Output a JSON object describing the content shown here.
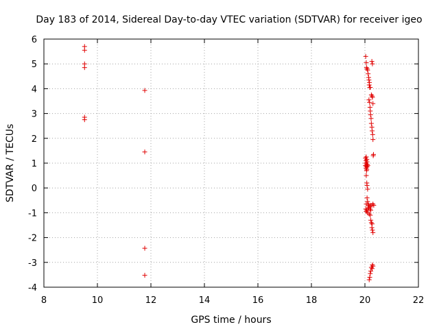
{
  "chart_data": {
    "type": "scatter",
    "title": "Day 183 of 2014, Sidereal Day-to-day VTEC variation (SDTVAR) for receiver igeo",
    "xlabel": "GPS time / hours",
    "ylabel": "SDTVAR / TECUs",
    "xlim": [
      8,
      22
    ],
    "ylim": [
      -4,
      6
    ],
    "xticks": [
      "8",
      "10",
      "12",
      "14",
      "16",
      "18",
      "20",
      "22"
    ],
    "yticks": [
      "-4",
      "-3",
      "-2",
      "-1",
      "0",
      "1",
      "2",
      "3",
      "4",
      "5",
      "6"
    ],
    "grid": true,
    "marker": "plus",
    "color": "#e00000",
    "series": [
      {
        "name": "SDTVAR",
        "points": [
          [
            9.52,
            5.7
          ],
          [
            9.52,
            5.55
          ],
          [
            9.52,
            5.0
          ],
          [
            9.52,
            4.85
          ],
          [
            9.52,
            2.85
          ],
          [
            9.52,
            2.75
          ],
          [
            11.77,
            3.93
          ],
          [
            11.77,
            1.45
          ],
          [
            11.77,
            -2.43
          ],
          [
            11.77,
            -3.52
          ],
          [
            20.03,
            5.3
          ],
          [
            20.05,
            5.05
          ],
          [
            20.06,
            4.85
          ],
          [
            20.08,
            4.8
          ],
          [
            20.1,
            4.75
          ],
          [
            20.12,
            4.6
          ],
          [
            20.14,
            4.45
          ],
          [
            20.15,
            4.35
          ],
          [
            20.17,
            4.25
          ],
          [
            20.16,
            4.15
          ],
          [
            20.18,
            4.05
          ],
          [
            20.2,
            4.05
          ],
          [
            20.24,
            3.75
          ],
          [
            20.27,
            3.7
          ],
          [
            20.28,
            3.65
          ],
          [
            20.26,
            5.1
          ],
          [
            20.28,
            5.0
          ],
          [
            20.15,
            3.55
          ],
          [
            20.17,
            3.45
          ],
          [
            20.19,
            3.25
          ],
          [
            20.2,
            3.1
          ],
          [
            20.21,
            2.95
          ],
          [
            20.23,
            2.8
          ],
          [
            20.24,
            2.6
          ],
          [
            20.26,
            2.45
          ],
          [
            20.27,
            2.3
          ],
          [
            20.29,
            2.15
          ],
          [
            20.3,
            1.95
          ],
          [
            20.3,
            3.4
          ],
          [
            20.32,
            1.35
          ],
          [
            20.31,
            1.3
          ],
          [
            20.02,
            1.2
          ],
          [
            20.05,
            1.25
          ],
          [
            20.07,
            1.15
          ],
          [
            20.04,
            1.1
          ],
          [
            20.08,
            1.05
          ],
          [
            20.03,
            1.0
          ],
          [
            20.06,
            0.95
          ],
          [
            20.09,
            0.95
          ],
          [
            20.02,
            0.9
          ],
          [
            20.05,
            0.88
          ],
          [
            20.08,
            0.85
          ],
          [
            20.11,
            0.9
          ],
          [
            20.04,
            0.8
          ],
          [
            20.07,
            0.75
          ],
          [
            20.06,
            0.7
          ],
          [
            20.05,
            0.5
          ],
          [
            20.07,
            0.2
          ],
          [
            20.08,
            0.1
          ],
          [
            20.1,
            -0.05
          ],
          [
            20.08,
            -0.4
          ],
          [
            20.1,
            -0.55
          ],
          [
            20.05,
            -0.65
          ],
          [
            20.12,
            -0.65
          ],
          [
            20.15,
            -0.7
          ],
          [
            20.18,
            -0.75
          ],
          [
            20.22,
            -0.7
          ],
          [
            20.26,
            -0.7
          ],
          [
            20.3,
            -0.65
          ],
          [
            20.33,
            -0.7
          ],
          [
            20.03,
            -0.85
          ],
          [
            20.07,
            -0.9
          ],
          [
            20.11,
            -0.85
          ],
          [
            20.14,
            -0.8
          ],
          [
            20.19,
            -0.85
          ],
          [
            20.05,
            -0.95
          ],
          [
            20.1,
            -1.0
          ],
          [
            20.16,
            -1.05
          ],
          [
            20.22,
            -0.9
          ],
          [
            20.2,
            -1.1
          ],
          [
            20.24,
            -1.4
          ],
          [
            20.27,
            -1.45
          ],
          [
            20.26,
            -1.6
          ],
          [
            20.28,
            -1.7
          ],
          [
            20.3,
            -1.8
          ],
          [
            20.22,
            -1.3
          ],
          [
            20.28,
            -3.1
          ],
          [
            20.3,
            -3.15
          ],
          [
            20.24,
            -3.2
          ],
          [
            20.27,
            -3.25
          ],
          [
            20.22,
            -3.35
          ],
          [
            20.2,
            -3.45
          ],
          [
            20.18,
            -3.6
          ],
          [
            20.16,
            -3.7
          ]
        ]
      }
    ]
  }
}
